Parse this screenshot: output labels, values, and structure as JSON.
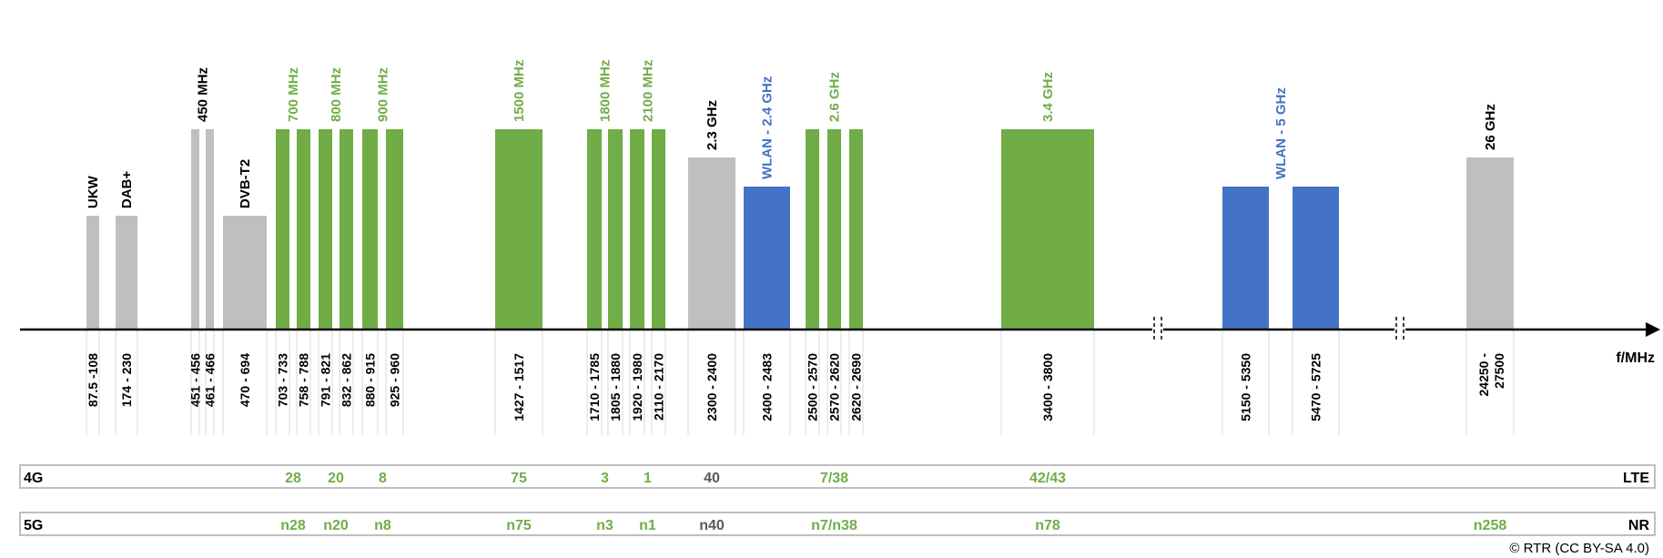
{
  "colors": {
    "mobile": "#70ad47",
    "wlan": "#4472c4",
    "other": "#bfbfbf",
    "label_dark": "#000000",
    "label_gray": "#595959",
    "guide": "#d9d9d9"
  },
  "axis": {
    "unit_label": "f/MHz"
  },
  "bands": [
    {
      "id": "ukw",
      "name": "UKW",
      "range": "87.5 -108",
      "type": "other",
      "level": 1,
      "name_color": "dark"
    },
    {
      "id": "dab",
      "name": "DAB+",
      "range": "174 - 230",
      "type": "other",
      "level": 1,
      "name_color": "dark"
    },
    {
      "id": "450a",
      "name": "",
      "range": "451 - 456",
      "type": "other",
      "level": 3,
      "name_color": "dark"
    },
    {
      "id": "450b",
      "name": "",
      "range": "461 - 466",
      "type": "other",
      "level": 3,
      "name_color": "dark"
    },
    {
      "id": "dvbt2",
      "name": "DVB-T2",
      "range": "470 - 694",
      "type": "other",
      "level": 1,
      "name_color": "dark"
    },
    {
      "id": "700a",
      "name": "",
      "range": "703 - 733",
      "type": "mobile",
      "level": 3
    },
    {
      "id": "700b",
      "name": "",
      "range": "758 - 788",
      "type": "mobile",
      "level": 3
    },
    {
      "id": "800a",
      "name": "",
      "range": "791 - 821",
      "type": "mobile",
      "level": 3
    },
    {
      "id": "800b",
      "name": "",
      "range": "832 - 862",
      "type": "mobile",
      "level": 3
    },
    {
      "id": "900a",
      "name": "",
      "range": "880 - 915",
      "type": "mobile",
      "level": 3
    },
    {
      "id": "900b",
      "name": "",
      "range": "925 - 960",
      "type": "mobile",
      "level": 3
    },
    {
      "id": "1500",
      "name": "",
      "range": "1427 - 1517",
      "type": "mobile",
      "level": 3
    },
    {
      "id": "1800a",
      "name": "",
      "range": "1710 - 1785",
      "type": "mobile",
      "level": 3
    },
    {
      "id": "1800b",
      "name": "",
      "range": "1805 - 1880",
      "type": "mobile",
      "level": 3
    },
    {
      "id": "2100a",
      "name": "",
      "range": "1920 - 1980",
      "type": "mobile",
      "level": 3
    },
    {
      "id": "2100b",
      "name": "",
      "range": "2110 - 2170",
      "type": "mobile",
      "level": 3
    },
    {
      "id": "2300",
      "name": "",
      "range": "2300 - 2400",
      "type": "other",
      "level": 2
    },
    {
      "id": "wlan24",
      "name": "",
      "range": "2400 - 2483",
      "type": "wlan",
      "level": 1.5
    },
    {
      "id": "2600a",
      "name": "",
      "range": "2500 - 2570",
      "type": "mobile",
      "level": 3
    },
    {
      "id": "2600b",
      "name": "",
      "range": "2570 - 2620",
      "type": "mobile",
      "level": 3
    },
    {
      "id": "2600c",
      "name": "",
      "range": "2620 - 2690",
      "type": "mobile",
      "level": 3
    },
    {
      "id": "3400",
      "name": "",
      "range": "3400 - 3800",
      "type": "mobile",
      "level": 3
    },
    {
      "id": "wlan5a",
      "name": "",
      "range": "5150 - 5350",
      "type": "wlan",
      "level": 1.5
    },
    {
      "id": "wlan5b",
      "name": "",
      "range": "5470 - 5725",
      "type": "wlan",
      "level": 1.5
    },
    {
      "id": "26g",
      "name": "",
      "range": "24250 - 27500",
      "range_lines": [
        "24250 -",
        "27500"
      ],
      "type": "other",
      "level": 2
    }
  ],
  "group_labels": [
    {
      "text": "450 MHz",
      "color": "dark",
      "over": [
        "450a",
        "450b"
      ]
    },
    {
      "text": "700 MHz",
      "color": "mobile",
      "over": [
        "700a",
        "700b"
      ]
    },
    {
      "text": "800 MHz",
      "color": "mobile",
      "over": [
        "800a",
        "800b"
      ]
    },
    {
      "text": "900 MHz",
      "color": "mobile",
      "over": [
        "900a",
        "900b"
      ]
    },
    {
      "text": "1500 MHz",
      "color": "mobile",
      "over": [
        "1500"
      ]
    },
    {
      "text": "1800 MHz",
      "color": "mobile",
      "over": [
        "1800a",
        "1800b"
      ]
    },
    {
      "text": "2100 MHz",
      "color": "mobile",
      "over": [
        "2100a",
        "2100b"
      ]
    },
    {
      "text": "2.3 GHz",
      "color": "dark",
      "over": [
        "2300"
      ]
    },
    {
      "text": "WLAN - 2.4 GHz",
      "color": "wlan",
      "over": [
        "wlan24"
      ]
    },
    {
      "text": "2.6 GHz",
      "color": "mobile",
      "over": [
        "2600b"
      ]
    },
    {
      "text": "3.4 GHz",
      "color": "mobile",
      "over": [
        "3400"
      ]
    },
    {
      "text": "WLAN - 5 GHz",
      "color": "wlan",
      "over": [
        "wlan5a",
        "wlan5b"
      ]
    },
    {
      "text": "26 GHz",
      "color": "dark",
      "over": [
        "26g"
      ]
    }
  ],
  "rows": [
    {
      "id": "4g",
      "left_label": "4G",
      "right_label": "LTE",
      "entries": [
        {
          "text": "28",
          "color": "mobile",
          "over": [
            "700a",
            "700b"
          ]
        },
        {
          "text": "20",
          "color": "mobile",
          "over": [
            "800a",
            "800b"
          ]
        },
        {
          "text": "8",
          "color": "mobile",
          "over": [
            "900a",
            "900b"
          ]
        },
        {
          "text": "75",
          "color": "mobile",
          "over": [
            "1500"
          ]
        },
        {
          "text": "3",
          "color": "mobile",
          "over": [
            "1800a",
            "1800b"
          ]
        },
        {
          "text": "1",
          "color": "mobile",
          "over": [
            "2100a",
            "2100b"
          ]
        },
        {
          "text": "40",
          "color": "gray",
          "over": [
            "2300"
          ]
        },
        {
          "text": "7/38",
          "color": "mobile",
          "over": [
            "2600b"
          ]
        },
        {
          "text": "42/43",
          "color": "mobile",
          "over": [
            "3400"
          ]
        }
      ]
    },
    {
      "id": "5g",
      "left_label": "5G",
      "right_label": "NR",
      "entries": [
        {
          "text": "n28",
          "color": "mobile",
          "over": [
            "700a",
            "700b"
          ]
        },
        {
          "text": "n20",
          "color": "mobile",
          "over": [
            "800a",
            "800b"
          ]
        },
        {
          "text": "n8",
          "color": "mobile",
          "over": [
            "900a",
            "900b"
          ]
        },
        {
          "text": "n75",
          "color": "mobile",
          "over": [
            "1500"
          ]
        },
        {
          "text": "n3",
          "color": "mobile",
          "over": [
            "1800a",
            "1800b"
          ]
        },
        {
          "text": "n1",
          "color": "mobile",
          "over": [
            "2100a",
            "2100b"
          ]
        },
        {
          "text": "n40",
          "color": "gray",
          "over": [
            "2300"
          ]
        },
        {
          "text": "n7/n38",
          "color": "mobile",
          "over": [
            "2600b"
          ]
        },
        {
          "text": "n78",
          "color": "mobile",
          "over": [
            "3400"
          ]
        },
        {
          "text": "n258",
          "color": "mobile",
          "over": [
            "26g"
          ]
        }
      ]
    }
  ],
  "copyright": "© RTR (CC BY-SA 4.0)"
}
